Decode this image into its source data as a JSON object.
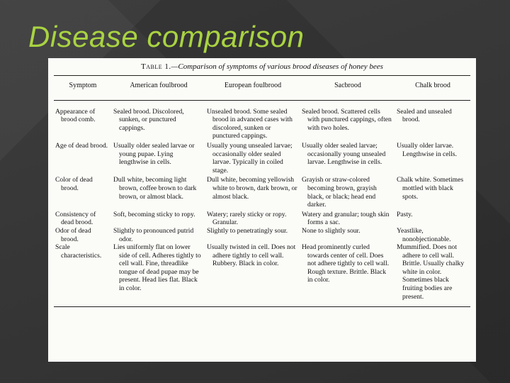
{
  "slide": {
    "title": "Disease comparison"
  },
  "table": {
    "caption_lead": "Table 1.",
    "caption_rest": "—Comparison of symptoms of various brood diseases of honey bees",
    "headers": [
      "Symptom",
      "American foulbrood",
      "European foulbrood",
      "Sacbrood",
      "Chalk brood"
    ],
    "rows": [
      [
        "Appearance of brood comb.",
        "Sealed brood. Discolored, sunken, or punctured cappings.",
        "Unsealed brood. Some sealed brood in advanced cases with discolored, sunken or punctured cappings.",
        "Sealed brood. Scattered cells with punctured cappings, often with two holes.",
        "Sealed and unsealed brood."
      ],
      [
        "Age of dead brood.",
        "Usually older sealed larvae or young pupae. Lying lengthwise in cells.",
        "Usually young unsealed larvae; occasionally older sealed larvae. Typically in coiled stage.",
        "Usually older sealed larvae; occasionally young unsealed larvae. Lengthwise in cells.",
        "Usually older larvae. Lengthwise in cells."
      ],
      [
        "Color of dead brood.",
        "Dull white, becoming light brown, coffee brown to dark brown, or almost black.",
        "Dull white, becoming yellowish white to brown, dark brown, or almost black.",
        "Grayish or straw-colored becoming brown, grayish black, or black; head end darker.",
        "Chalk white. Sometimes mottled with black spots."
      ],
      [
        "Consistency of dead brood.",
        "Soft, becoming sticky to ropy.",
        "Watery; rarely sticky or ropy. Granular.",
        "Watery and granular; tough skin forms a sac.",
        "Pasty."
      ],
      [
        "Odor of dead brood.",
        "Slightly to pronounced putrid odor.",
        "Slightly to penetratingly sour.",
        "None to slightly sour.",
        "Yeastlike, nonobjectionable."
      ],
      [
        "Scale characteristics.",
        "Lies uniformly flat on lower side of cell. Adheres tightly to cell wall. Fine, threadlike tongue of dead pupae may be present. Head lies flat. Black in color.",
        "Usually twisted in cell. Does not adhere tightly to cell wall. Rubbery. Black in color.",
        "Head prominently curled towards center of cell. Does not adhere tightly to cell wall. Rough texture. Brittle. Black in color.",
        "Mummified. Does not adhere to cell wall. Brittle. Usually chalky white in color. Sometimes black fruiting bodies are present."
      ]
    ]
  }
}
